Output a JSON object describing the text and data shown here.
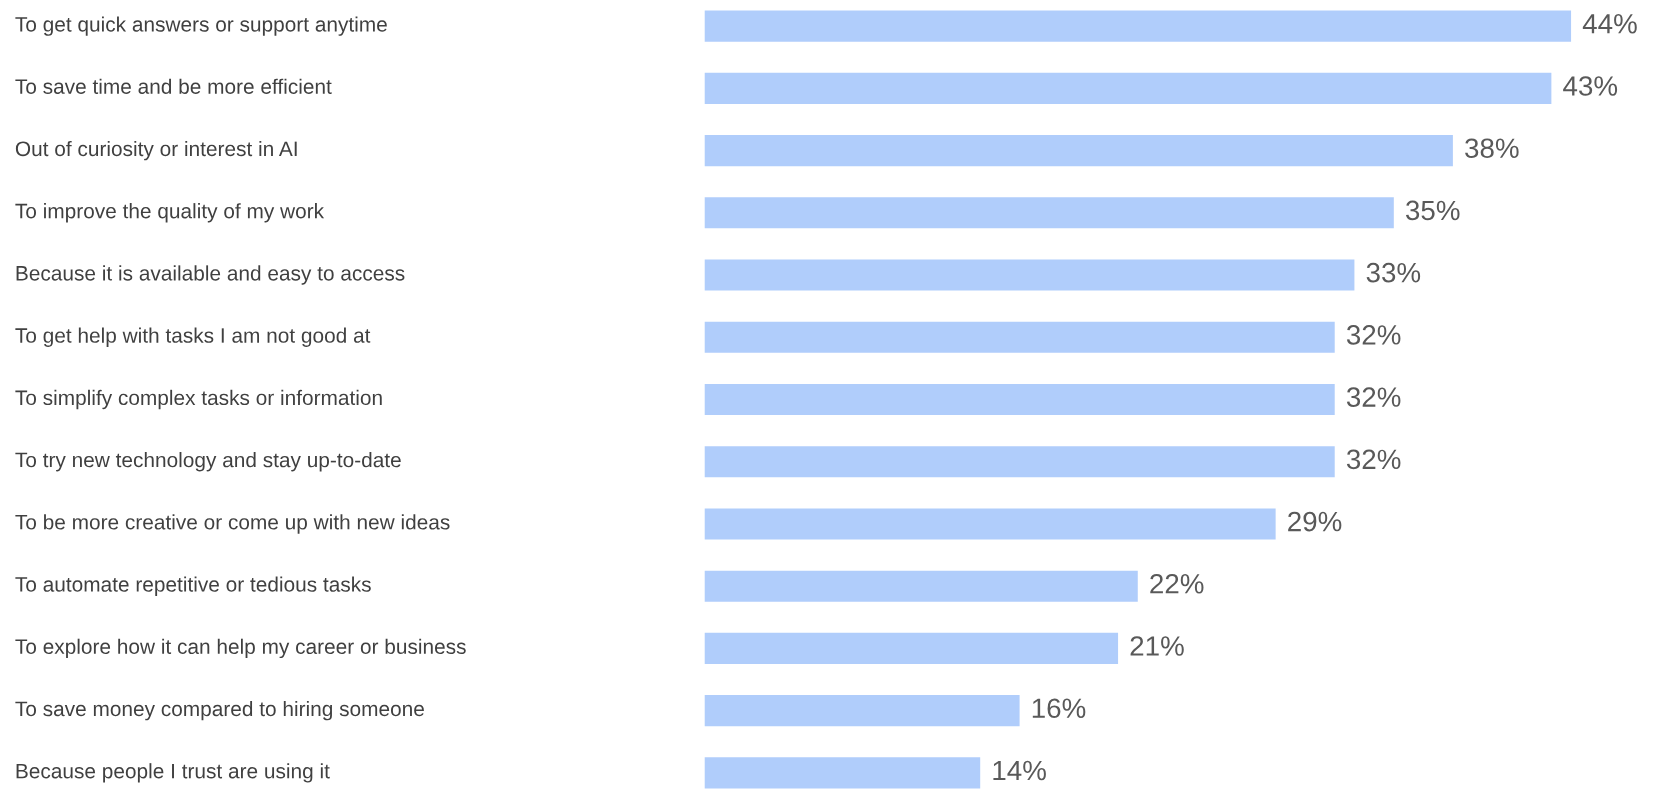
{
  "chart_data": {
    "type": "bar",
    "orientation": "horizontal",
    "categories": [
      "To get quick answers or support anytime",
      "To save time and be more efficient",
      "Out of curiosity or interest in AI",
      "To improve the quality of my work",
      "Because it is available and easy to access",
      "To get help with tasks I am not good at",
      "To simplify complex tasks or information",
      "To try new technology and stay up-to-date",
      "To be more creative or come up with new ideas",
      "To automate repetitive or tedious tasks",
      "To explore how it can help my career or business",
      "To save money compared to hiring someone",
      "Because people I trust are using it"
    ],
    "values": [
      44,
      43,
      38,
      35,
      33,
      32,
      32,
      32,
      29,
      22,
      21,
      16,
      14
    ],
    "value_labels": [
      "44%",
      "43%",
      "38%",
      "35%",
      "33%",
      "32%",
      "32%",
      "32%",
      "29%",
      "22%",
      "21%",
      "16%",
      "14%"
    ],
    "color": "#b0cdfb"
  }
}
